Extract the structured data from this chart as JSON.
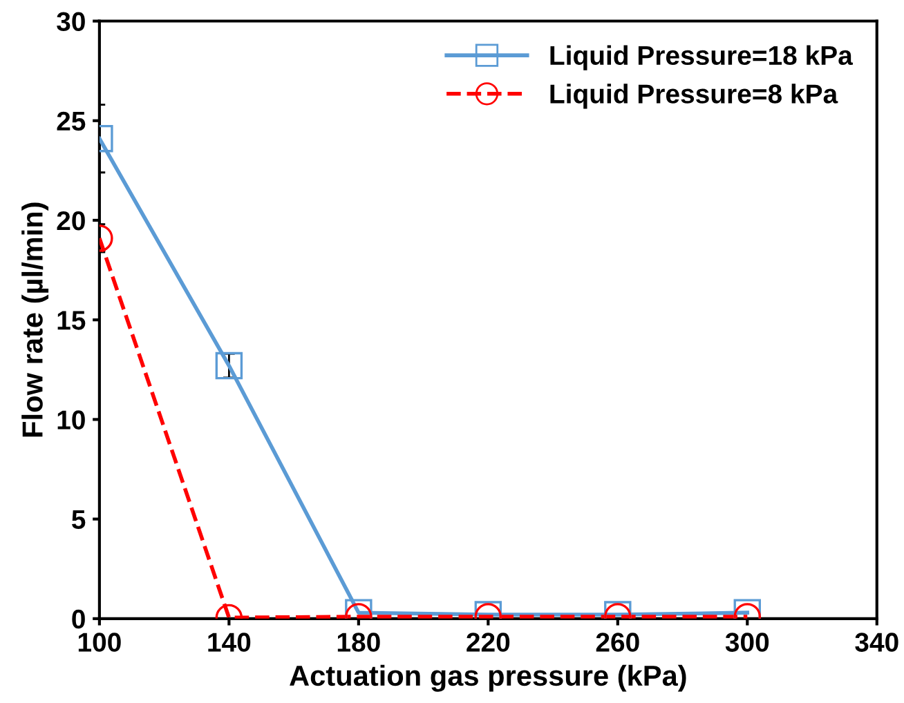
{
  "chart_data": {
    "type": "line",
    "xlabel": "Actuation gas pressure (kPa)",
    "ylabel": "Flow rate (µl/min)",
    "x": [
      100,
      140,
      180,
      220,
      260,
      300
    ],
    "series": [
      {
        "name": "Liquid Pressure=18 kPa",
        "color": "#5b9bd5",
        "marker": "square",
        "line_style": "solid",
        "values": [
          24.1,
          12.7,
          0.3,
          0.2,
          0.2,
          0.3
        ],
        "errors": [
          1.7,
          0.6,
          null,
          null,
          null,
          null
        ]
      },
      {
        "name": "Liquid Pressure=8 kPa",
        "color": "#ff0000",
        "marker": "circle",
        "line_style": "dashed",
        "values": [
          19.1,
          0.05,
          0.1,
          0.1,
          0.1,
          0.1
        ],
        "errors": [
          0.7,
          null,
          null,
          null,
          null,
          null
        ]
      }
    ],
    "xlim": [
      100,
      340
    ],
    "xticks": [
      100,
      140,
      180,
      220,
      260,
      300,
      340
    ],
    "ylim": [
      0,
      30
    ],
    "yticks": [
      0,
      5,
      10,
      15,
      20,
      25,
      30
    ],
    "grid": false,
    "legend": "top right"
  }
}
